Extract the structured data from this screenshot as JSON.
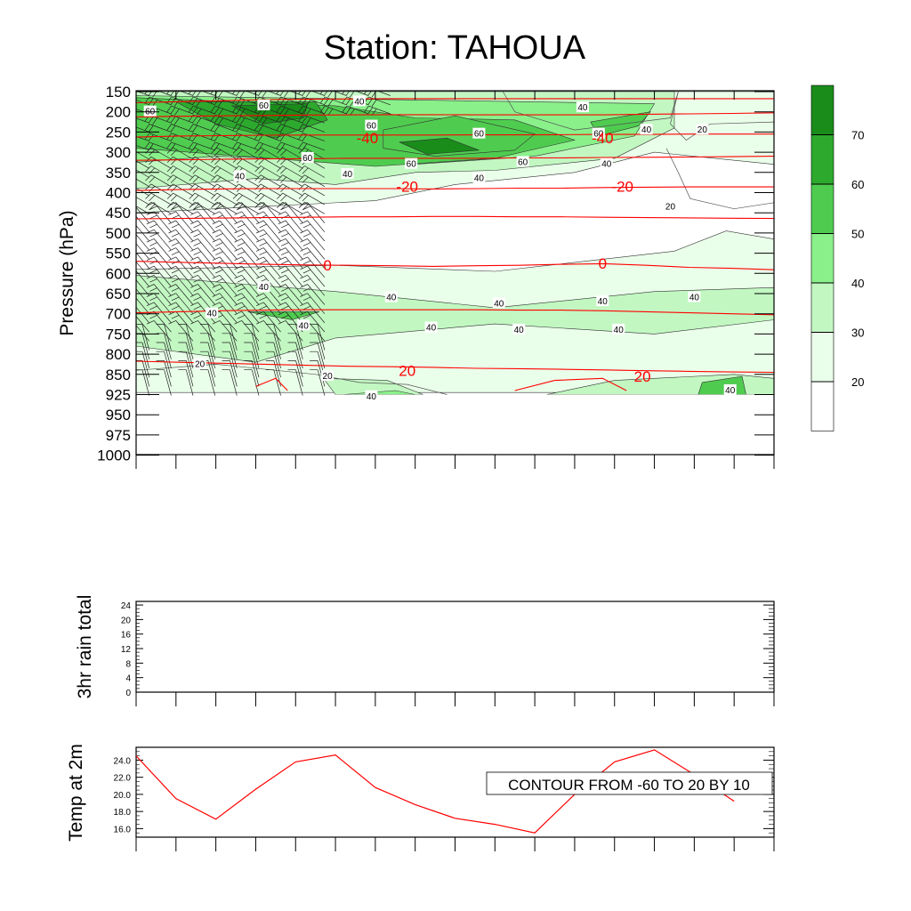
{
  "title": "Station: TAHOUA",
  "chart_data": [
    {
      "type": "heatmap",
      "ylabel": "Pressure (hPa)",
      "y_ticks": [
        "150",
        "200",
        "250",
        "300",
        "350",
        "400",
        "450",
        "500",
        "550",
        "600",
        "650",
        "700",
        "750",
        "800",
        "850",
        "925",
        "950",
        "975",
        "1000"
      ],
      "fill_field": {
        "description_levels": [
          20,
          30,
          40,
          50,
          60,
          70
        ],
        "colorbar_labels": [
          "70",
          "60",
          "50",
          "40",
          "30",
          "20"
        ],
        "colors": [
          "#ffffff",
          "#eaffea",
          "#c2f7c2",
          "#8af08a",
          "#4fcc4f",
          "#2daa2d",
          "#1a8c1a"
        ],
        "contour_labels": [
          {
            "text": "60",
            "tick": 0.35,
            "lev": 1.0
          },
          {
            "text": "60",
            "tick": 3.2,
            "lev": 0.7
          },
          {
            "text": "40",
            "tick": 5.6,
            "lev": 0.5
          },
          {
            "text": "40",
            "tick": 11.2,
            "lev": 0.8
          },
          {
            "text": "60",
            "tick": 5.9,
            "lev": 1.7
          },
          {
            "text": "60",
            "tick": 8.6,
            "lev": 2.1
          },
          {
            "text": "60",
            "tick": 11.6,
            "lev": 2.1
          },
          {
            "text": "40",
            "tick": 12.8,
            "lev": 1.9
          },
          {
            "text": "20",
            "tick": 14.2,
            "lev": 1.9
          },
          {
            "text": "60",
            "tick": 4.3,
            "lev": 3.3
          },
          {
            "text": "60",
            "tick": 6.9,
            "lev": 3.6
          },
          {
            "text": "60",
            "tick": 9.7,
            "lev": 3.5
          },
          {
            "text": "40",
            "tick": 2.6,
            "lev": 4.2
          },
          {
            "text": "40",
            "tick": 5.3,
            "lev": 4.1
          },
          {
            "text": "40",
            "tick": 8.6,
            "lev": 4.3
          },
          {
            "text": "40",
            "tick": 11.8,
            "lev": 3.6
          },
          {
            "text": "20",
            "tick": 13.4,
            "lev": 5.7
          },
          {
            "text": "40",
            "tick": 3.2,
            "lev": 9.7
          },
          {
            "text": "40",
            "tick": 6.4,
            "lev": 10.2
          },
          {
            "text": "40",
            "tick": 9.1,
            "lev": 10.5
          },
          {
            "text": "40",
            "tick": 11.7,
            "lev": 10.4
          },
          {
            "text": "40",
            "tick": 14.0,
            "lev": 10.2
          },
          {
            "text": "40",
            "tick": 1.9,
            "lev": 11.0
          },
          {
            "text": "40",
            "tick": 4.2,
            "lev": 11.6
          },
          {
            "text": "40",
            "tick": 7.4,
            "lev": 11.7
          },
          {
            "text": "40",
            "tick": 9.6,
            "lev": 11.8
          },
          {
            "text": "40",
            "tick": 12.1,
            "lev": 11.8
          },
          {
            "text": "20",
            "tick": 1.6,
            "lev": 13.5
          },
          {
            "text": "20",
            "tick": 4.8,
            "lev": 14.1
          },
          {
            "text": "40",
            "tick": 5.9,
            "lev": 15.1
          },
          {
            "text": "40",
            "tick": 14.9,
            "lev": 14.8
          }
        ]
      },
      "temperature_contours": {
        "color": "#ff0000",
        "lines_lev": [
          [
            0.55,
            0.5,
            0.45,
            0.4,
            0.38,
            0.36,
            0.35,
            0.35,
            0.35,
            0.35,
            0.35,
            0.35,
            0.35,
            0.35,
            0.35,
            0.35
          ],
          [
            1.25,
            1.22,
            1.2,
            1.18,
            1.16,
            1.15,
            1.14,
            1.14,
            1.15,
            1.15,
            1.15,
            1.15,
            1.12,
            1.1,
            1.08,
            1.05
          ],
          [
            2.25,
            2.2,
            2.18,
            2.16,
            2.15,
            2.15,
            2.15,
            2.15,
            2.14,
            2.14,
            2.13,
            2.12,
            2.12,
            2.1,
            2.1,
            2.1
          ],
          [
            3.4,
            3.38,
            3.35,
            3.33,
            3.32,
            3.3,
            3.3,
            3.3,
            3.3,
            3.28,
            3.28,
            3.26,
            3.25,
            3.24,
            3.22,
            3.2
          ],
          [
            4.9,
            4.85,
            4.82,
            4.8,
            4.8,
            4.8,
            4.8,
            4.82,
            4.8,
            4.78,
            4.78,
            4.75,
            4.73,
            4.72,
            4.72,
            4.72
          ],
          [
            6.3,
            6.28,
            6.26,
            6.24,
            6.22,
            6.2,
            6.2,
            6.18,
            6.18,
            6.2,
            6.2,
            6.22,
            6.24,
            6.25,
            6.27,
            6.28
          ],
          [
            8.4,
            8.45,
            8.5,
            8.55,
            8.58,
            8.6,
            8.62,
            8.65,
            8.62,
            8.6,
            8.55,
            8.52,
            8.6,
            8.7,
            8.75,
            8.82
          ],
          [
            10.95,
            10.9,
            10.85,
            10.82,
            10.8,
            10.8,
            10.8,
            10.8,
            10.8,
            10.82,
            10.82,
            10.85,
            10.9,
            10.95,
            11.0,
            11.05
          ],
          [
            13.35,
            13.4,
            13.45,
            13.5,
            13.55,
            13.6,
            13.62,
            13.65,
            13.7,
            13.72,
            13.75,
            13.78,
            13.82,
            13.85,
            13.88,
            13.9
          ]
        ],
        "labels": [
          {
            "text": "-40",
            "tick": 5.8,
            "lev": 2.3
          },
          {
            "text": "-40",
            "tick": 11.7,
            "lev": 2.3
          },
          {
            "text": "-20",
            "tick": 6.8,
            "lev": 4.7
          },
          {
            "text": "-20",
            "tick": 12.2,
            "lev": 4.7
          },
          {
            "text": "0",
            "tick": 4.8,
            "lev": 8.6
          },
          {
            "text": "0",
            "tick": 11.7,
            "lev": 8.5
          },
          {
            "text": "20",
            "tick": 6.8,
            "lev": 13.8
          },
          {
            "text": "20",
            "tick": 12.7,
            "lev": 14.1
          }
        ]
      },
      "x_tick_count": 16
    },
    {
      "type": "line",
      "ylabel": "3hr rain total",
      "yticks": [
        "0",
        "4",
        "8",
        "12",
        "16",
        "20",
        "24"
      ],
      "ylim": [
        0,
        25
      ],
      "values": []
    },
    {
      "type": "line",
      "ylabel": "Temp at 2m",
      "yticks": [
        "16.0",
        "18.0",
        "20.0",
        "22.0",
        "24.0"
      ],
      "ylim": [
        15.0,
        25.5
      ],
      "x": [
        0,
        1,
        2,
        3,
        4,
        5,
        6,
        7,
        8,
        9,
        10,
        11,
        12,
        13,
        14,
        15
      ],
      "values": [
        24.5,
        19.5,
        17.1,
        20.6,
        23.8,
        24.6,
        20.8,
        18.8,
        17.2,
        16.5,
        15.5,
        20.0,
        23.8,
        25.2,
        22.3,
        19.2
      ],
      "color": "#ff0000",
      "annotation": "CONTOUR FROM -60 TO 20 BY 10"
    }
  ]
}
